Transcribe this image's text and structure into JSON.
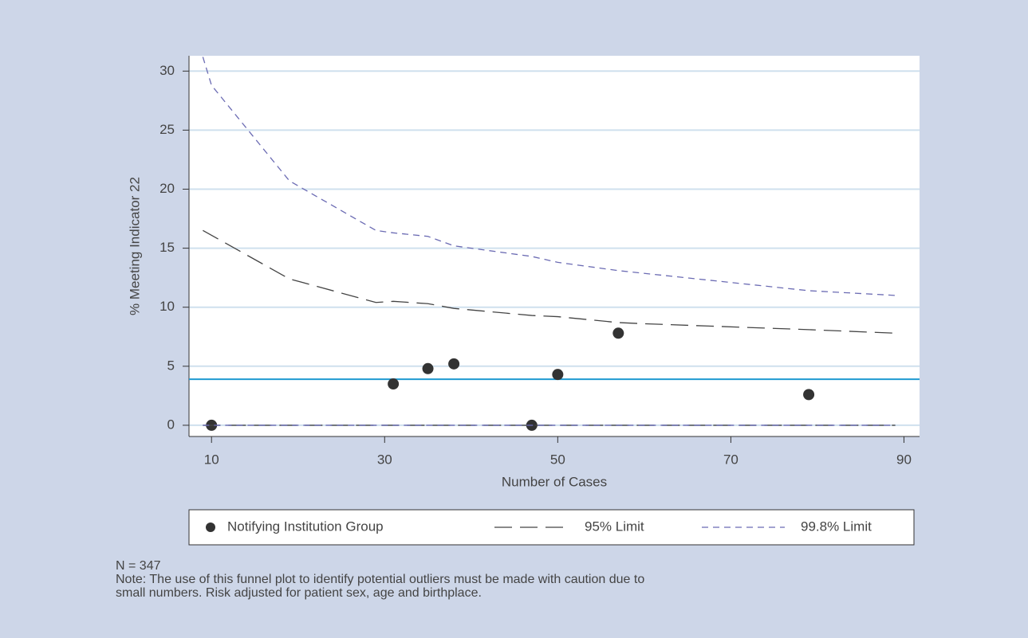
{
  "chart_data": {
    "type": "funnel",
    "x_label": "Number of Cases",
    "y_label": "% Meeting Indicator 22",
    "xlim": [
      7.4,
      91.8
    ],
    "ylim": [
      -0.95,
      31.3
    ],
    "xticks": [
      10,
      30,
      50,
      70,
      90
    ],
    "yticks": [
      0,
      5,
      10,
      15,
      20,
      25,
      30
    ],
    "grid": true,
    "reference_line": {
      "value": 3.9,
      "color": "#1f9ad1"
    },
    "series": [
      {
        "name": "Notifying Institution Group",
        "kind": "scatter",
        "color": "#333333",
        "x": [
          10,
          31,
          35,
          38,
          47,
          50,
          57,
          79
        ],
        "values": [
          0,
          3.5,
          4.8,
          5.2,
          0,
          4.3,
          7.8,
          2.6
        ]
      },
      {
        "name": "95% Limit",
        "kind": "line",
        "color": "#444444",
        "dash": "22 10",
        "x": [
          9,
          19,
          29,
          31,
          35,
          38,
          47,
          50,
          57,
          60,
          79,
          89
        ],
        "values": [
          16.5,
          12.4,
          10.4,
          10.5,
          10.3,
          9.9,
          9.3,
          9.2,
          8.7,
          8.6,
          8.1,
          7.8
        ],
        "lower": [
          0,
          0,
          0,
          0,
          0,
          0,
          0,
          0,
          0,
          0,
          0,
          0
        ]
      },
      {
        "name": "99.8% Limit",
        "kind": "line",
        "color": "#6b6bb3",
        "dash": "8 6",
        "x": [
          9,
          10,
          19,
          29,
          31,
          35,
          38,
          47,
          50,
          57,
          79,
          89
        ],
        "values": [
          31.2,
          28.8,
          20.7,
          16.5,
          16.3,
          16.0,
          15.2,
          14.3,
          13.8,
          13.1,
          11.4,
          11.0
        ],
        "lower": [
          0,
          0,
          0,
          0,
          0,
          0,
          0,
          0,
          0,
          0,
          0,
          0
        ]
      }
    ],
    "footnote": [
      "N = 347",
      "Note: The use of this funnel plot to identify potential outliers must be made with caution due to",
      "small numbers. Risk adjusted for patient sex, age and birthplace."
    ]
  }
}
